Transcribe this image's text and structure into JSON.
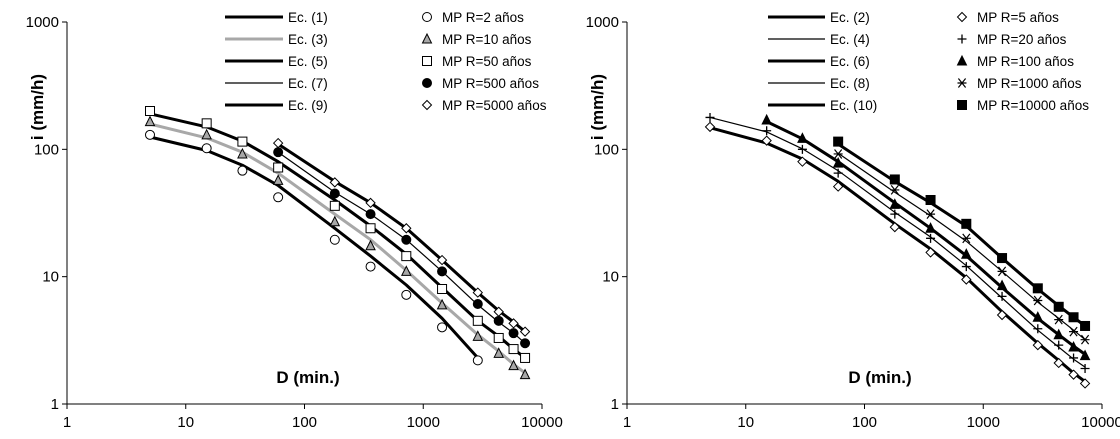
{
  "chart_data": [
    {
      "type": "scatter",
      "title": "",
      "xlabel": "D (min.)",
      "ylabel": "i (mm/h)",
      "x_scale": "log",
      "y_scale": "log",
      "xlim": [
        1,
        10000
      ],
      "ylim": [
        1,
        1000
      ],
      "x_ticks": [
        "1",
        "10",
        "100",
        "1000",
        "10000"
      ],
      "y_ticks": [
        "1",
        "10",
        "100",
        "1000"
      ],
      "grid": false,
      "legend_lines": [
        {
          "name": "Ec. (1)",
          "color": "#000000",
          "width": 3
        },
        {
          "name": "Ec. (3)",
          "color": "#a8a8a8",
          "width": 3
        },
        {
          "name": "Ec. (5)",
          "color": "#000000",
          "width": 3
        },
        {
          "name": "Ec. (7)",
          "color": "#000000",
          "width": 1.2
        },
        {
          "name": "Ec. (9)",
          "color": "#000000",
          "width": 3
        }
      ],
      "series": [
        {
          "name": "MP R=2 años",
          "marker": "circle-open",
          "x": [
            5,
            15,
            30,
            60,
            180,
            360,
            720,
            1440,
            2880
          ],
          "y": [
            130,
            102,
            68,
            42,
            19.5,
            12,
            7.2,
            4,
            2.2
          ]
        },
        {
          "name": "MP R=10 años",
          "marker": "triangle-gray",
          "x": [
            5,
            15,
            30,
            60,
            180,
            360,
            720,
            1440,
            2880,
            4320,
            5760,
            7200
          ],
          "y": [
            165,
            130,
            92,
            57,
            27,
            17.5,
            11,
            6,
            3.4,
            2.5,
            2,
            1.7
          ]
        },
        {
          "name": "MP R=50 años",
          "marker": "square-open",
          "x": [
            5,
            15,
            30,
            60,
            180,
            360,
            720,
            1440,
            2880,
            4320,
            5760,
            7200
          ],
          "y": [
            200,
            160,
            115,
            72,
            36,
            24,
            14.5,
            8,
            4.5,
            3.3,
            2.7,
            2.3
          ]
        },
        {
          "name": "MP R=500 años",
          "marker": "circle-filled",
          "x": [
            60,
            180,
            360,
            720,
            1440,
            2880,
            4320,
            5760,
            7200
          ],
          "y": [
            95,
            45,
            31,
            19.5,
            11,
            6.1,
            4.5,
            3.6,
            3
          ]
        },
        {
          "name": "MP R=5000 años",
          "marker": "diamond-open",
          "x": [
            60,
            180,
            360,
            720,
            1440,
            2880,
            4320,
            5760,
            7200
          ],
          "y": [
            112,
            55,
            38,
            24,
            13.5,
            7.5,
            5.3,
            4.3,
            3.7
          ]
        }
      ],
      "curves": [
        {
          "name": "Ec. (1)",
          "x": [
            5,
            15,
            30,
            60,
            180,
            360,
            720,
            1440,
            2880
          ],
          "y": [
            125,
            98,
            75,
            52,
            24,
            14.5,
            8.6,
            4.7,
            2.3
          ]
        },
        {
          "name": "Ec. (3)",
          "x": [
            5,
            15,
            30,
            60,
            180,
            360,
            720,
            1440,
            2880,
            4320,
            5760,
            7200
          ],
          "y": [
            158,
            123,
            95,
            65,
            31,
            19.5,
            11.2,
            6.2,
            3.5,
            2.6,
            2.05,
            1.75
          ]
        },
        {
          "name": "Ec. (5)",
          "x": [
            5,
            15,
            30,
            60,
            180,
            360,
            720,
            1440,
            2880,
            4320,
            5760,
            7200
          ],
          "y": [
            190,
            150,
            116,
            80,
            40,
            25,
            15,
            8.2,
            4.5,
            3.4,
            2.7,
            2.3
          ]
        },
        {
          "name": "Ec. (7)",
          "x": [
            60,
            180,
            360,
            720,
            1440,
            2880,
            4320,
            5760,
            7200
          ],
          "y": [
            95,
            46,
            31,
            19.5,
            11,
            6,
            4.4,
            3.6,
            3
          ]
        },
        {
          "name": "Ec. (9)",
          "x": [
            60,
            180,
            360,
            720,
            1440,
            2880,
            4320,
            5760,
            7200
          ],
          "y": [
            110,
            56,
            38,
            24,
            13.5,
            7.5,
            5.4,
            4.4,
            3.7
          ]
        }
      ]
    },
    {
      "type": "scatter",
      "title": "",
      "xlabel": "D (min.)",
      "ylabel": "i (mm/h)",
      "x_scale": "log",
      "y_scale": "log",
      "xlim": [
        1,
        10000
      ],
      "ylim": [
        1,
        1000
      ],
      "x_ticks": [
        "1",
        "10",
        "100",
        "1000",
        "10000"
      ],
      "y_ticks": [
        "1",
        "10",
        "100",
        "1000"
      ],
      "grid": false,
      "legend_lines": [
        {
          "name": "Ec. (2)",
          "color": "#000000",
          "width": 3
        },
        {
          "name": "Ec. (4)",
          "color": "#000000",
          "width": 1.2
        },
        {
          "name": "Ec. (6)",
          "color": "#000000",
          "width": 3
        },
        {
          "name": "Ec. (8)",
          "color": "#000000",
          "width": 1.2
        },
        {
          "name": "Ec. (10)",
          "color": "#000000",
          "width": 3
        }
      ],
      "series": [
        {
          "name": "MP R=5 años",
          "marker": "diamond-open",
          "x": [
            5,
            15,
            30,
            60,
            180,
            360,
            720,
            1440,
            2880,
            4320,
            5760,
            7200
          ],
          "y": [
            150,
            117,
            80,
            51,
            24.5,
            15.5,
            9.5,
            5,
            2.9,
            2.1,
            1.7,
            1.45
          ]
        },
        {
          "name": "MP R=20 años",
          "marker": "plus",
          "x": [
            5,
            15,
            30,
            60,
            180,
            360,
            720,
            1440,
            2880,
            4320,
            5760,
            7200
          ],
          "y": [
            178,
            140,
            100,
            65,
            31,
            20,
            12,
            7,
            3.9,
            2.9,
            2.3,
            1.9
          ]
        },
        {
          "name": "MP R=100 años",
          "marker": "triangle-filled",
          "x": [
            15,
            30,
            60,
            180,
            360,
            720,
            1440,
            2880,
            4320,
            5760,
            7200
          ],
          "y": [
            170,
            122,
            78,
            37,
            24,
            15,
            8.5,
            4.8,
            3.5,
            2.8,
            2.4
          ]
        },
        {
          "name": "MP R=1000 años",
          "marker": "asterisk",
          "x": [
            60,
            180,
            360,
            720,
            1440,
            2880,
            4320,
            5760,
            7200
          ],
          "y": [
            92,
            48,
            31,
            20,
            11,
            6.5,
            4.6,
            3.7,
            3.2
          ]
        },
        {
          "name": "MP R=10000 años",
          "marker": "square-filled",
          "x": [
            60,
            180,
            360,
            720,
            1440,
            2880,
            4320,
            5760,
            7200
          ],
          "y": [
            115,
            58,
            40,
            26,
            14,
            8.1,
            5.8,
            4.8,
            4.1
          ]
        }
      ],
      "curves": [
        {
          "name": "Ec. (2)",
          "x": [
            5,
            15,
            30,
            60,
            180,
            360,
            720,
            1440,
            2880,
            4320,
            5760,
            7200
          ],
          "y": [
            148,
            112,
            84,
            56,
            26,
            16.5,
            9.8,
            5.3,
            3,
            2.2,
            1.75,
            1.5
          ]
        },
        {
          "name": "Ec. (4)",
          "x": [
            5,
            15,
            30,
            60,
            180,
            360,
            720,
            1440,
            2880,
            4320,
            5760,
            7200
          ],
          "y": [
            178,
            137,
            101,
            68,
            32,
            20.5,
            12.2,
            6.8,
            3.8,
            2.8,
            2.25,
            1.95
          ]
        },
        {
          "name": "Ec. (6)",
          "x": [
            15,
            30,
            60,
            180,
            360,
            720,
            1440,
            2880,
            4320,
            5760,
            7200
          ],
          "y": [
            165,
            121,
            80,
            38,
            24,
            14.6,
            8.2,
            4.7,
            3.5,
            2.85,
            2.45
          ]
        },
        {
          "name": "Ec. (8)",
          "x": [
            60,
            180,
            360,
            720,
            1440,
            2880,
            4320,
            5760,
            7200
          ],
          "y": [
            93,
            46,
            30,
            19,
            11,
            6.3,
            4.7,
            3.8,
            3.2
          ]
        },
        {
          "name": "Ec. (10)",
          "x": [
            60,
            180,
            360,
            720,
            1440,
            2880,
            4320,
            5760,
            7200
          ],
          "y": [
            110,
            56,
            38,
            25,
            14,
            8,
            5.9,
            4.8,
            4.1
          ]
        }
      ]
    }
  ]
}
